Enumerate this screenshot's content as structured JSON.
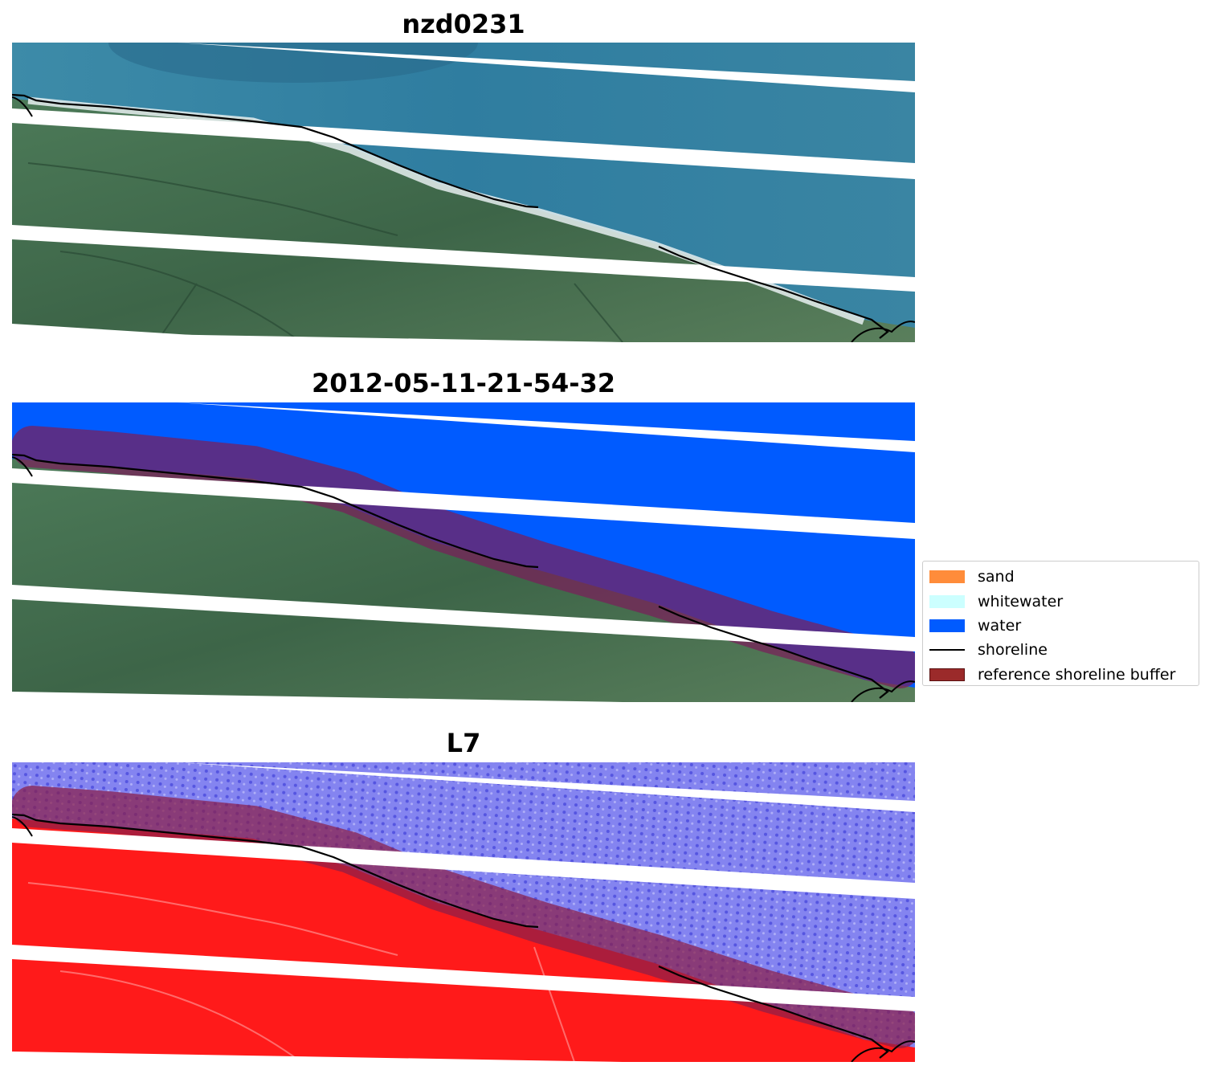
{
  "panels": [
    {
      "title": "nzd0231",
      "layer": "rgb"
    },
    {
      "title": "2012-05-11-21-54-32",
      "layer": "classified"
    },
    {
      "title": "L7",
      "layer": "mndwi"
    }
  ],
  "legend": {
    "items": [
      {
        "label": "sand",
        "color": "#ff8c3a",
        "kind": "patch"
      },
      {
        "label": "whitewater",
        "color": "#ccffff",
        "kind": "patch"
      },
      {
        "label": "water",
        "color": "#005bff",
        "kind": "patch"
      },
      {
        "label": "shoreline",
        "color": "#000000",
        "kind": "line"
      },
      {
        "label": "reference shoreline buffer",
        "color": "#9b2a2a",
        "kind": "patch"
      }
    ]
  },
  "colors": {
    "sea_rgb": "#3a7fa0",
    "land_rgb": "#3f6a48",
    "water_class": "#005bff",
    "water_index": "#7777ee",
    "land_index": "#ff1a1a",
    "buffer": "#9b2a2a",
    "shoreline": "#000000"
  }
}
